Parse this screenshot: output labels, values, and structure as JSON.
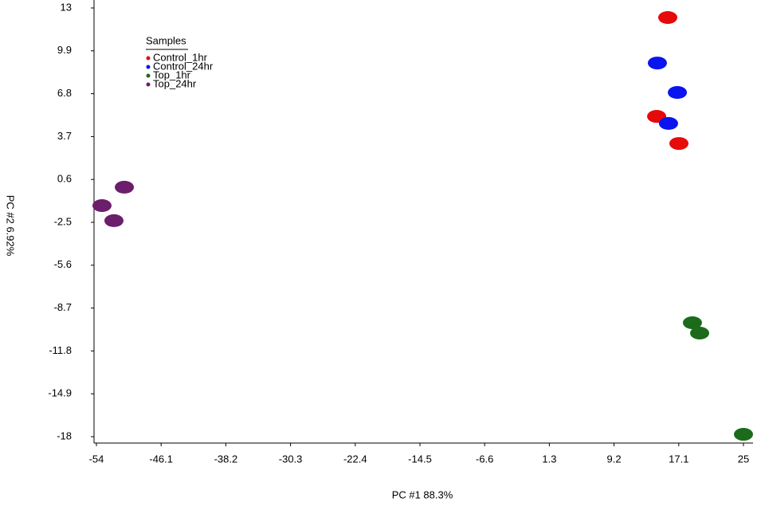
{
  "chart_data": {
    "type": "scatter",
    "x_label": "PC #1 88.3%",
    "y_label": "PC #2 6.92%",
    "legend_title": "Samples",
    "legend": "upper-left",
    "xlim": [
      -54,
      25
    ],
    "xticks": [
      -54,
      -46.1,
      -38.2,
      -30.3,
      -22.4,
      -14.5,
      -6.6,
      1.3,
      9.2,
      17.1,
      25
    ],
    "ylim": [
      -18,
      13
    ],
    "yticks": [
      13,
      9.9,
      6.8,
      3.7,
      0.6,
      -2.5,
      -5.6,
      -8.7,
      -11.8,
      -14.9,
      -18
    ],
    "series": [
      {
        "name": "Control_1hr",
        "color": "#e60a0a",
        "x": [
          15.76,
          14.4,
          17.12
        ],
        "values": [
          12.31,
          5.16,
          3.2
        ]
      },
      {
        "name": "Control_24hr",
        "color": "#0a14f0",
        "x": [
          14.49,
          16.93,
          15.85
        ],
        "values": [
          9.02,
          6.89,
          4.65
        ]
      },
      {
        "name": "Top_1hr",
        "color": "#1b6b1b",
        "x": [
          18.77,
          19.65,
          25.0
        ],
        "values": [
          -9.76,
          -10.51,
          -17.83
        ]
      },
      {
        "name": "Top_24hr",
        "color": "#6b1e6b",
        "x": [
          -50.59,
          -53.32,
          -51.86
        ],
        "values": [
          0.04,
          -1.29,
          -2.38
        ]
      }
    ]
  }
}
